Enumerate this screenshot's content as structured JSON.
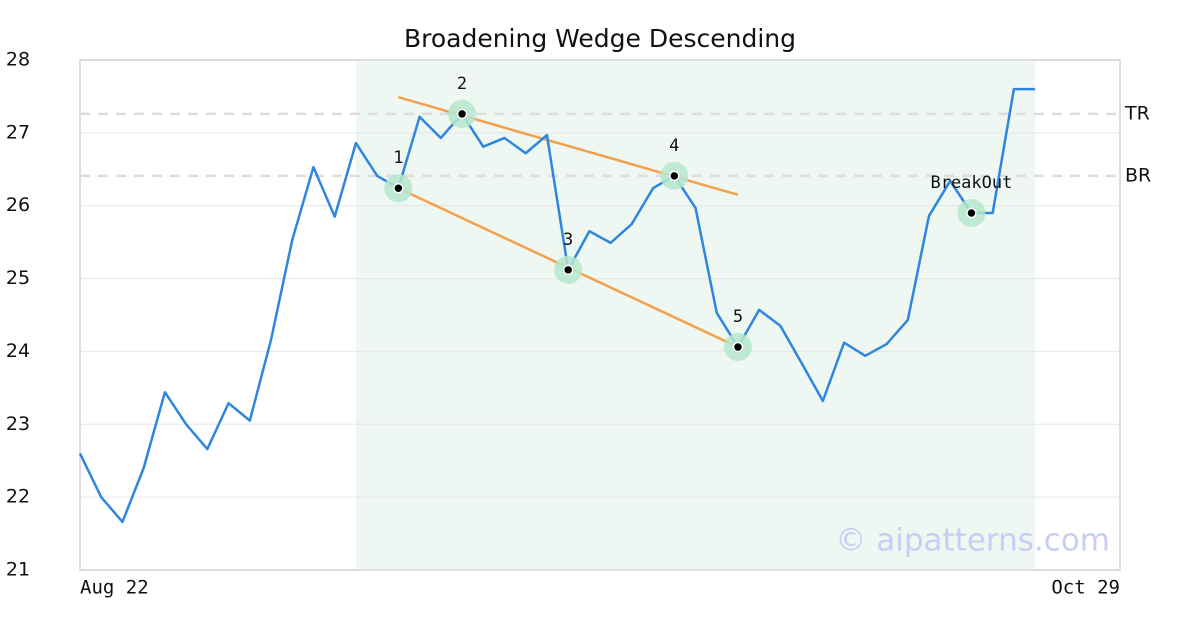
{
  "chart_data": {
    "type": "line",
    "title": "Broadening Wedge Descending",
    "categories": [
      "Aug 22",
      null,
      null,
      null,
      null,
      null,
      null,
      null,
      null,
      null,
      null,
      null,
      null,
      null,
      null,
      null,
      null,
      null,
      null,
      null,
      null,
      null,
      null,
      null,
      null,
      null,
      null,
      null,
      null,
      null,
      null,
      null,
      null,
      null,
      null,
      null,
      null,
      null,
      null,
      null,
      null,
      null,
      null,
      null,
      null,
      null,
      null,
      null,
      null,
      "Oct 29"
    ],
    "series": [
      {
        "color": "#2e86de",
        "values": [
          22.6,
          22.0,
          21.66,
          22.4,
          23.44,
          23.0,
          22.66,
          23.29,
          23.05,
          24.16,
          25.53,
          26.53,
          25.85,
          26.86,
          26.41,
          26.24,
          27.22,
          26.93,
          27.26,
          26.81,
          26.93,
          26.72,
          26.97,
          25.12,
          25.65,
          25.49,
          25.75,
          26.24,
          26.41,
          25.97,
          24.53,
          24.06,
          24.57,
          24.35,
          23.84,
          23.32,
          24.12,
          23.94,
          24.1,
          24.43,
          25.86,
          26.34,
          25.9,
          25.9,
          27.6,
          27.6,
          null,
          null,
          null,
          null
        ]
      }
    ],
    "ylim": [
      21,
      28
    ],
    "yticks": [
      21,
      22,
      23,
      24,
      25,
      26,
      27,
      28
    ],
    "grid": true,
    "shaded_range": [
      13,
      45
    ],
    "pattern_points": [
      {
        "label": "1",
        "x": 15,
        "value": 26.24
      },
      {
        "label": "2",
        "x": 18,
        "value": 27.26
      },
      {
        "label": "3",
        "x": 23,
        "value": 25.12
      },
      {
        "label": "4",
        "x": 28,
        "value": 26.41
      },
      {
        "label": "5",
        "x": 31,
        "value": 24.06
      },
      {
        "label": "BreakOut",
        "x": 42,
        "value": 25.9
      }
    ],
    "trendlines": [
      {
        "color": "#f5a04a",
        "x": [
          15,
          31
        ],
        "values": [
          27.49,
          26.15
        ]
      },
      {
        "color": "#f5a04a",
        "x": [
          15,
          31
        ],
        "values": [
          26.24,
          24.06
        ]
      }
    ],
    "levels": [
      {
        "label": "TR",
        "value": 27.26
      },
      {
        "label": "BR",
        "value": 26.41
      }
    ],
    "watermark": "© aipatterns.com"
  }
}
